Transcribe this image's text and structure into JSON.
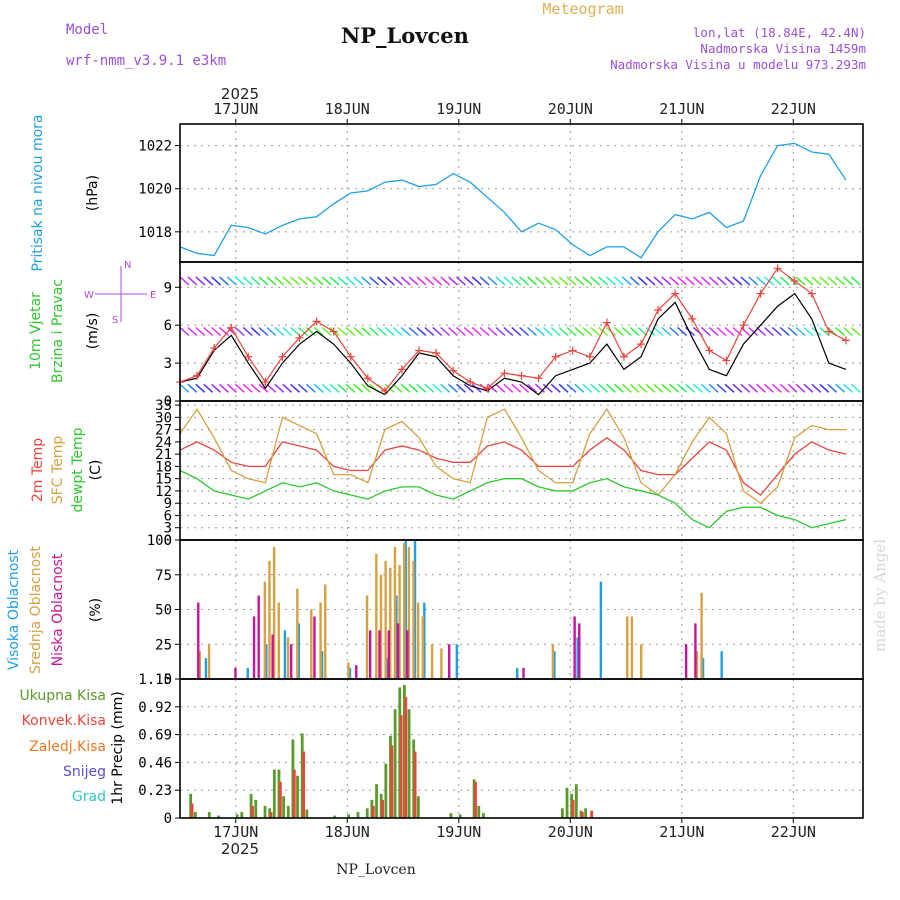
{
  "header": {
    "model_label": "Model",
    "model_value": "wrf-nmm_v3.9.1  e3km",
    "station": "NP_Lovcen",
    "app_title": "Meteogram",
    "lonlat": "lon,lat (18.84E, 42.4N)",
    "elevation": "Nadmorska Visina 1459m",
    "model_elevation": "Nadmorska Visina u modelu 973.293m",
    "year_top": "2025",
    "year_bottom": "2025",
    "footer_station": "NP_Lovcen",
    "watermark": "made by Angel"
  },
  "colors": {
    "pressure": "#1ea0e6",
    "t2m": "#e8463c",
    "sfc": "#d8a040",
    "dewpt": "#2ec82e",
    "high_cloud": "#1ea0e6",
    "mid_cloud": "#d8a040",
    "low_cloud": "#c81496",
    "total_rain": "#5a9a2a",
    "conv_rain": "#e8463c",
    "freezing": "#f07820",
    "snow": "#5a4ad8",
    "hail": "#2cc8c8",
    "wind_speed": "#000000",
    "wind_gust": "#e8463c"
  },
  "chart_data": [
    {
      "type": "line",
      "panel": "pressure",
      "ylabel_main": "Pritisak na nivou mora",
      "ylabel_unit": "(hPa)",
      "ylim": [
        1016.6,
        1023.0
      ],
      "yticks": [
        "1018",
        "1020",
        "1022"
      ],
      "x_start_hours": 0,
      "x_step_hours": 3,
      "xlim_hours": [
        0,
        147
      ],
      "xticks": [
        "17JUN",
        "18JUN",
        "19JUN",
        "20JUN",
        "21JUN",
        "22JUN"
      ],
      "series": [
        {
          "name": "Pritisak na nivou mora",
          "values": [
            1017.3,
            1017.0,
            1016.9,
            1018.3,
            1018.2,
            1017.9,
            1018.3,
            1018.6,
            1018.7,
            1019.3,
            1019.8,
            1019.9,
            1020.3,
            1020.4,
            1020.1,
            1020.2,
            1020.7,
            1020.3,
            1019.6,
            1018.9,
            1018.0,
            1018.4,
            1018.1,
            1017.4,
            1016.9,
            1017.3,
            1017.3,
            1016.8,
            1018.0,
            1018.8,
            1018.6,
            1018.9,
            1018.2,
            1018.5,
            1020.6,
            1022.0,
            1022.1,
            1021.7,
            1021.6,
            1020.4
          ]
        }
      ]
    },
    {
      "type": "line",
      "panel": "wind",
      "ylabel_main": "10m Vjetar",
      "ylabel_sub": "Brzina i Pravac",
      "ylabel_unit": "(m/s)",
      "compass": {
        "n": "N",
        "w": "W",
        "e": "E",
        "s": "S"
      },
      "ylim": [
        0,
        11
      ],
      "yticks": [
        "0",
        "3",
        "6",
        "9"
      ],
      "x_start_hours": 0,
      "x_step_hours": 3,
      "series": [
        {
          "name": "Brzina",
          "values": [
            1.5,
            1.8,
            4.0,
            5.2,
            3.0,
            1.0,
            3.0,
            4.5,
            5.5,
            4.5,
            3.0,
            1.2,
            0.5,
            2.0,
            3.8,
            3.5,
            2.0,
            1.2,
            0.8,
            1.8,
            1.5,
            0.5,
            2.0,
            2.5,
            3.0,
            4.5,
            2.5,
            3.5,
            6.5,
            7.8,
            5.0,
            2.5,
            2.0,
            4.5,
            6.0,
            7.5,
            8.5,
            6.5,
            3.0,
            2.5
          ]
        },
        {
          "name": "Udari",
          "values": [
            1.5,
            2.0,
            4.2,
            5.8,
            3.5,
            1.5,
            3.5,
            5.0,
            6.3,
            5.5,
            3.5,
            1.8,
            0.8,
            2.5,
            4.0,
            3.8,
            2.4,
            1.5,
            1.0,
            2.2,
            2.0,
            1.8,
            3.5,
            4.0,
            3.5,
            6.2,
            3.5,
            4.5,
            7.2,
            8.5,
            6.5,
            4.0,
            3.2,
            6.0,
            8.5,
            10.5,
            9.5,
            8.5,
            5.5,
            4.8
          ]
        }
      ],
      "barb_levels": [
        1,
        5.5,
        9.5
      ]
    },
    {
      "type": "line",
      "panel": "temperature",
      "ylabel_lines": [
        "2m Temp",
        "SFC Temp",
        "dewpt Temp"
      ],
      "ylabel_unit": "(C)",
      "ylim": [
        0,
        34
      ],
      "yticks": [
        "0",
        "3",
        "6",
        "9",
        "12",
        "15",
        "18",
        "21",
        "24",
        "27",
        "30",
        "33"
      ],
      "x_start_hours": 0,
      "x_step_hours": 3,
      "series": [
        {
          "name": "2m Temp",
          "values": [
            22,
            24,
            22,
            19,
            18,
            18,
            24,
            23,
            22,
            18,
            17,
            17,
            22,
            23,
            22,
            20,
            19,
            19,
            23,
            24,
            22,
            18,
            18,
            18,
            22,
            25,
            22,
            17,
            16,
            16,
            20,
            24,
            22,
            14,
            11,
            16,
            21,
            24,
            22,
            21
          ]
        },
        {
          "name": "SFC Temp",
          "values": [
            26,
            32,
            25,
            17,
            15,
            14,
            30,
            28,
            26,
            16,
            16,
            14,
            27,
            29,
            25,
            18,
            15,
            14,
            30,
            32,
            25,
            17,
            14,
            14,
            26,
            32,
            25,
            14,
            11,
            16,
            24,
            30,
            26,
            12,
            9,
            13,
            25,
            28,
            27,
            27
          ]
        },
        {
          "name": "dewpt Temp",
          "values": [
            17,
            15,
            12,
            11,
            10,
            12,
            14,
            13,
            14,
            12,
            11,
            10,
            12,
            13,
            13,
            11,
            10,
            12,
            14,
            15,
            15,
            13,
            12,
            12,
            14,
            15,
            13,
            12,
            11,
            9,
            5,
            3,
            7,
            8,
            8,
            6,
            5,
            3,
            4,
            5
          ]
        }
      ]
    },
    {
      "type": "bar",
      "panel": "clouds",
      "ylabel_lines": [
        "Visoka Oblacnost",
        "Srednja Oblacnost",
        "Niska Oblacnost"
      ],
      "ylabel_unit": "(%)",
      "ylim": [
        0,
        100
      ],
      "yticks": [
        "0",
        "25",
        "50",
        "75",
        "100"
      ],
      "x_step_hours": 1,
      "series": [
        {
          "name": "Visoka Oblacnost",
          "bars": [
            [
              5,
              15
            ],
            [
              14,
              8
            ],
            [
              18,
              25
            ],
            [
              22,
              35
            ],
            [
              25,
              40
            ],
            [
              30,
              20
            ],
            [
              36,
              8
            ],
            [
              44,
              15
            ],
            [
              46,
              60
            ],
            [
              48,
              100
            ],
            [
              50,
              100
            ],
            [
              52,
              55
            ],
            [
              59,
              25
            ],
            [
              72,
              8
            ],
            [
              80,
              20
            ],
            [
              85,
              30
            ],
            [
              90,
              70
            ],
            [
              112,
              15
            ],
            [
              116,
              20
            ]
          ]
        },
        {
          "name": "Srednja Oblacnost",
          "bars": [
            [
              4,
              20
            ],
            [
              6,
              25
            ],
            [
              18,
              70
            ],
            [
              19,
              85
            ],
            [
              20,
              95
            ],
            [
              21,
              55
            ],
            [
              23,
              30
            ],
            [
              25,
              65
            ],
            [
              28,
              50
            ],
            [
              30,
              55
            ],
            [
              31,
              68
            ],
            [
              36,
              12
            ],
            [
              40,
              60
            ],
            [
              42,
              90
            ],
            [
              43,
              75
            ],
            [
              44,
              85
            ],
            [
              45,
              80
            ],
            [
              46,
              95
            ],
            [
              47,
              82
            ],
            [
              48,
              98
            ],
            [
              49,
              95
            ],
            [
              50,
              85
            ],
            [
              51,
              55
            ],
            [
              52,
              45
            ],
            [
              54,
              25
            ],
            [
              56,
              22
            ],
            [
              80,
              25
            ],
            [
              96,
              45
            ],
            [
              97,
              45
            ],
            [
              99,
              25
            ],
            [
              111,
              20
            ],
            [
              112,
              62
            ]
          ]
        },
        {
          "name": "Niska Oblacnost",
          "bars": [
            [
              4,
              55
            ],
            [
              12,
              8
            ],
            [
              16,
              45
            ],
            [
              17,
              60
            ],
            [
              20,
              32
            ],
            [
              24,
              25
            ],
            [
              29,
              45
            ],
            [
              38,
              10
            ],
            [
              41,
              35
            ],
            [
              43,
              35
            ],
            [
              45,
              35
            ],
            [
              47,
              40
            ],
            [
              49,
              35
            ],
            [
              58,
              25
            ],
            [
              74,
              8
            ],
            [
              85,
              45
            ],
            [
              86,
              40
            ],
            [
              109,
              25
            ],
            [
              111,
              40
            ]
          ]
        }
      ]
    },
    {
      "type": "bar",
      "panel": "precip",
      "legend": [
        "Ukupna Kisa",
        "Konvek.Kisa",
        "Zaledj.Kisa",
        "Snijeg",
        "Grad"
      ],
      "ylabel_unit": "1hr Precip (mm)",
      "ylim": [
        0,
        1.15
      ],
      "yticks": [
        "0",
        "0.23",
        "0.46",
        "0.69",
        "0.92",
        "1.15"
      ],
      "x_step_hours": 1,
      "series": [
        {
          "name": "Ukupna Kisa",
          "bars": [
            [
              2,
              0.2
            ],
            [
              3,
              0.05
            ],
            [
              6,
              0.05
            ],
            [
              8,
              0.02
            ],
            [
              12,
              0.03
            ],
            [
              13,
              0.05
            ],
            [
              15,
              0.2
            ],
            [
              16,
              0.15
            ],
            [
              18,
              0.1
            ],
            [
              19,
              0.08
            ],
            [
              20,
              0.4
            ],
            [
              21,
              0.4
            ],
            [
              22,
              0.18
            ],
            [
              23,
              0.1
            ],
            [
              24,
              0.65
            ],
            [
              25,
              0.35
            ],
            [
              26,
              0.7
            ],
            [
              27,
              0.07
            ],
            [
              33,
              0.02
            ],
            [
              36,
              0.03
            ],
            [
              38,
              0.05
            ],
            [
              40,
              0.08
            ],
            [
              41,
              0.15
            ],
            [
              42,
              0.28
            ],
            [
              43,
              0.2
            ],
            [
              44,
              0.45
            ],
            [
              45,
              0.68
            ],
            [
              46,
              0.9
            ],
            [
              47,
              1.08
            ],
            [
              48,
              1.1
            ],
            [
              49,
              0.9
            ],
            [
              50,
              0.65
            ],
            [
              51,
              0.18
            ],
            [
              58,
              0.04
            ],
            [
              60,
              0.03
            ],
            [
              63,
              0.32
            ],
            [
              64,
              0.1
            ],
            [
              65,
              0.04
            ],
            [
              82,
              0.08
            ],
            [
              83,
              0.25
            ],
            [
              84,
              0.2
            ],
            [
              85,
              0.28
            ],
            [
              86,
              0.06
            ],
            [
              87,
              0.08
            ]
          ]
        },
        {
          "name": "Konvek.Kisa",
          "bars": [
            [
              2,
              0.12
            ],
            [
              15,
              0.1
            ],
            [
              19,
              0.05
            ],
            [
              21,
              0.3
            ],
            [
              24,
              0.4
            ],
            [
              26,
              0.55
            ],
            [
              41,
              0.1
            ],
            [
              43,
              0.15
            ],
            [
              45,
              0.6
            ],
            [
              47,
              0.85
            ],
            [
              48,
              1.0
            ],
            [
              50,
              0.55
            ],
            [
              63,
              0.3
            ],
            [
              84,
              0.15
            ],
            [
              86,
              0.05
            ],
            [
              88,
              0.06
            ]
          ]
        },
        {
          "name": "Zaledj.Kisa",
          "bars": []
        },
        {
          "name": "Snijeg",
          "bars": []
        },
        {
          "name": "Grad",
          "bars": []
        }
      ]
    }
  ]
}
